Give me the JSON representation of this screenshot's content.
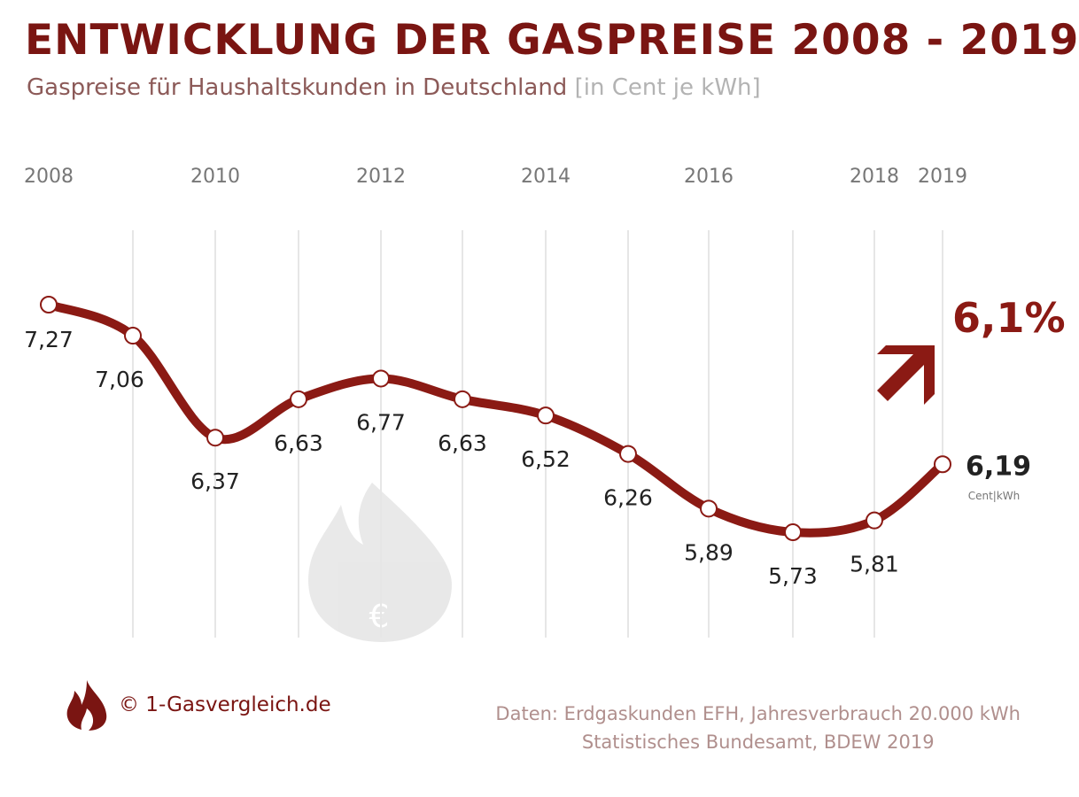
{
  "title": "ENTWICKLUNG DER GASPREISE 2008 - 2019",
  "subtitle": "Gaspreise für Haushaltskunden in Deutschland",
  "subtitle_unit": "[in Cent je kWh]",
  "colors": {
    "accent": "#7a1512",
    "line": "#8b1a14",
    "grid": "#e6e6e6"
  },
  "chart_data": {
    "type": "line",
    "x": [
      2008,
      2009,
      2010,
      2011,
      2012,
      2013,
      2014,
      2015,
      2016,
      2017,
      2018,
      2019
    ],
    "tick_labels": [
      "2008",
      "2010",
      "2012",
      "2014",
      "2016",
      "2018",
      "2019"
    ],
    "values": [
      7.27,
      7.06,
      6.37,
      6.63,
      6.77,
      6.63,
      6.52,
      6.26,
      5.89,
      5.73,
      5.81,
      6.19
    ],
    "value_labels": [
      "7,27",
      "7,06",
      "6,37",
      "6,63",
      "6,77",
      "6,63",
      "6,52",
      "6,26",
      "5,89",
      "5,73",
      "5,81",
      "6,19"
    ],
    "last_unit": "Cent|kWh",
    "annotation": "6,1%",
    "annotation_icon": "arrow-up-right-icon",
    "grid": "vertical"
  },
  "footer": {
    "brand": "© 1-Gasvergleich.de",
    "source_line1": "Daten: Erdgaskunden EFH, Jahresverbrauch 20.000 kWh",
    "source_line2": "Statistisches Bundesamt, BDEW 2019"
  }
}
